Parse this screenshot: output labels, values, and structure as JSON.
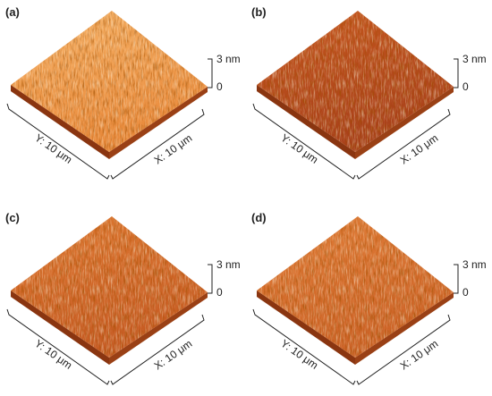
{
  "panels": [
    {
      "label": "(a)",
      "x_axis": "X: 10 μm",
      "y_axis": "Y: 10 μm",
      "z_top": "3 nm",
      "z_zero": "0"
    },
    {
      "label": "(b)",
      "x_axis": "X: 10 μm",
      "y_axis": "Y: 10 μm",
      "z_top": "3 nm",
      "z_zero": "0"
    },
    {
      "label": "(c)",
      "x_axis": "X: 10 μm",
      "y_axis": "Y: 10 μm",
      "z_top": "3 nm",
      "z_zero": "0"
    },
    {
      "label": "(d)",
      "x_axis": "X: 10 μm",
      "y_axis": "Y: 10 μm",
      "z_top": "3 nm",
      "z_zero": "0"
    }
  ]
}
